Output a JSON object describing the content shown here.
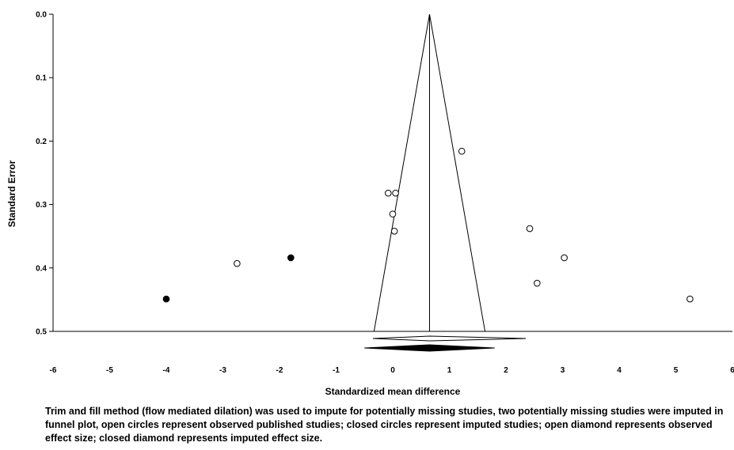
{
  "chart_data": {
    "type": "scatter",
    "xlabel": "Standardized mean difference",
    "ylabel": "Standard Error",
    "xlim": [
      -6,
      6
    ],
    "ylim": [
      0.0,
      0.5
    ],
    "y_reversed": true,
    "x_ticks": [
      "-6",
      "-5",
      "-4",
      "-3",
      "-2",
      "-1",
      "0",
      "1",
      "2",
      "3",
      "4",
      "5",
      "6"
    ],
    "y_ticks": [
      "0.0",
      "0.1",
      "0.2",
      "0.3",
      "0.4",
      "0.5"
    ],
    "series": [
      {
        "marker": "open-circle",
        "points": [
          {
            "x": -2.75,
            "y": 0.393
          },
          {
            "x": -0.08,
            "y": 0.282
          },
          {
            "x": 0.05,
            "y": 0.282
          },
          {
            "x": 0.0,
            "y": 0.315
          },
          {
            "x": 0.03,
            "y": 0.342
          },
          {
            "x": 1.22,
            "y": 0.216
          },
          {
            "x": 2.42,
            "y": 0.338
          },
          {
            "x": 3.03,
            "y": 0.384
          },
          {
            "x": 2.55,
            "y": 0.424
          },
          {
            "x": 5.25,
            "y": 0.449
          }
        ]
      },
      {
        "marker": "closed-circle",
        "points": [
          {
            "x": -1.8,
            "y": 0.384
          },
          {
            "x": -4.0,
            "y": 0.449
          }
        ]
      }
    ],
    "funnel": {
      "center": 0.65,
      "left_base": -0.33,
      "right_base": 1.63
    },
    "diamonds": [
      {
        "style": "open",
        "center": 0.65,
        "low": -0.35,
        "high": 2.35
      },
      {
        "style": "closed",
        "center": 0.65,
        "low": -0.5,
        "high": 1.8
      }
    ]
  },
  "caption": "Trim and fill method (flow mediated dilation) was used to impute for potentially missing studies, two potentially missing studies were imputed in funnel plot, open circles represent observed published studies; closed circles represent imputed studies; open diamond represents observed effect size; closed diamond represents imputed effect size."
}
